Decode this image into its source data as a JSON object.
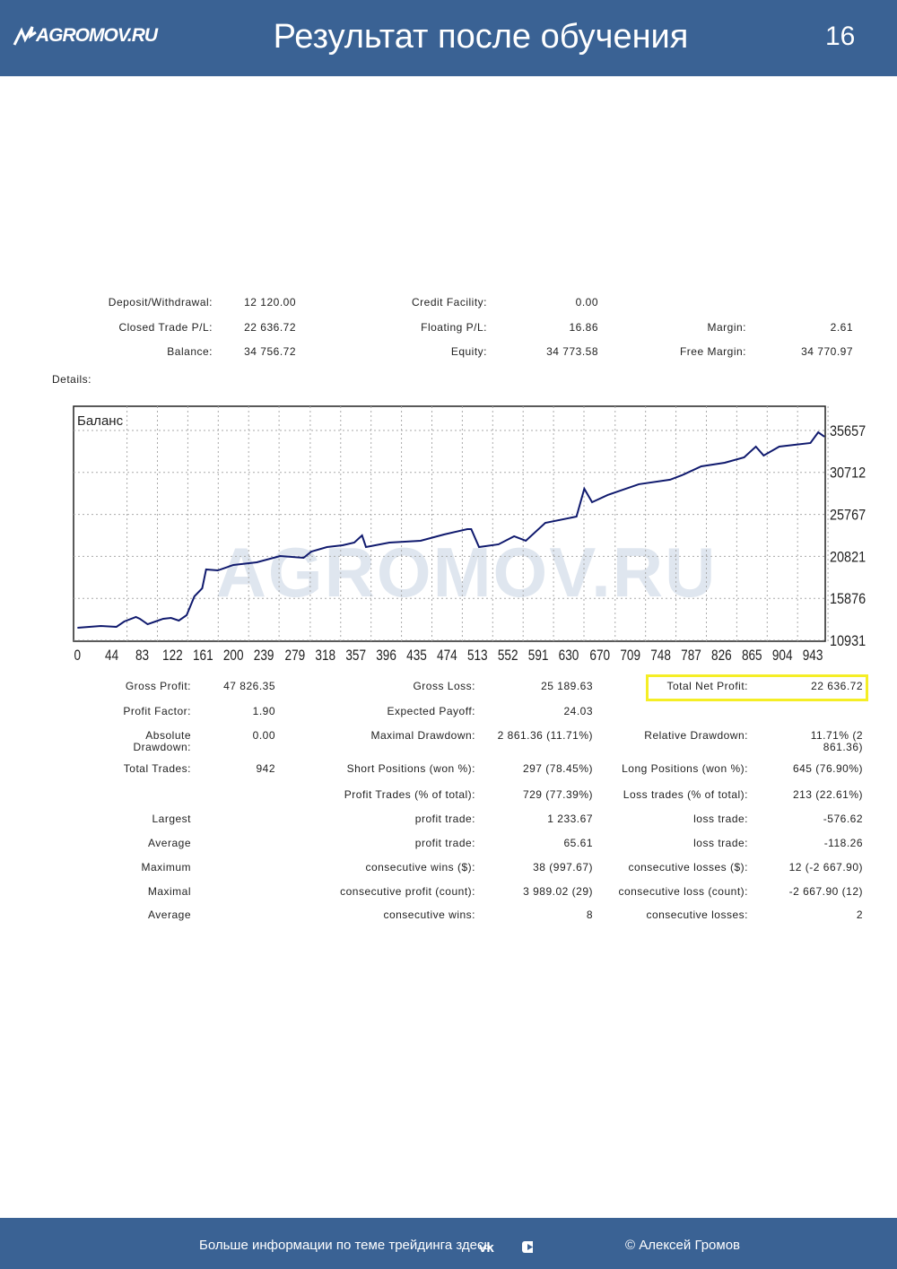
{
  "header": {
    "logo": "AGROMOV.RU",
    "title": "Результат после обучения",
    "page": "16"
  },
  "summary": [
    [
      "Deposit/Withdrawal:",
      "12 120.00",
      "Credit Facility:",
      "0.00",
      null,
      null
    ],
    [
      "Closed Trade P/L:",
      "22 636.72",
      "Floating P/L:",
      "16.86",
      "Margin:",
      "2.61"
    ],
    [
      "Balance:",
      "34 756.72",
      "Equity:",
      "34 773.58",
      "Free Margin:",
      "34 770.97"
    ]
  ],
  "details_label": "Details:",
  "watermark": "AGROMOV.RU",
  "chart_data": {
    "type": "line",
    "title": "Баланс",
    "color": "#101a6e",
    "grid": true,
    "x": [
      0,
      30,
      50,
      60,
      75,
      80,
      90,
      100,
      110,
      120,
      130,
      140,
      150,
      160,
      165,
      180,
      200,
      230,
      260,
      290,
      300,
      320,
      340,
      355,
      365,
      370,
      400,
      440,
      470,
      500,
      505,
      515,
      540,
      560,
      575,
      600,
      640,
      650,
      660,
      680,
      720,
      760,
      775,
      800,
      830,
      855,
      870,
      880,
      900,
      940,
      950,
      958
    ],
    "series": [
      {
        "name": "Баланс",
        "color": "#101a6e",
        "values": [
          12410,
          12620,
          12520,
          13150,
          13680,
          13470,
          12830,
          13150,
          13470,
          13570,
          13260,
          13890,
          16110,
          17060,
          19280,
          19170,
          19810,
          20120,
          20860,
          20650,
          21390,
          21920,
          22130,
          22450,
          23290,
          21920,
          22450,
          22660,
          23400,
          24030,
          24030,
          21920,
          22240,
          23190,
          22660,
          24770,
          25510,
          28790,
          27200,
          28050,
          29320,
          29850,
          30370,
          31430,
          31850,
          32490,
          33750,
          32700,
          33750,
          34180,
          35440,
          34920
        ]
      }
    ],
    "xlim": [
      -5,
      959
    ],
    "ylim": [
      10826,
      38504
    ],
    "xticks": [
      0,
      44,
      83,
      122,
      161,
      200,
      239,
      279,
      318,
      357,
      396,
      435,
      474,
      513,
      552,
      591,
      630,
      670,
      709,
      748,
      787,
      826,
      865,
      904,
      943
    ],
    "yticks": [
      10931,
      15876,
      20821,
      25767,
      30712,
      35657
    ]
  },
  "stats": [
    [
      "Gross Profit:",
      "47 826.35",
      "Gross Loss:",
      "25 189.63",
      "Total Net Profit:",
      "22 636.72"
    ],
    [
      "Profit Factor:",
      "1.90",
      "Expected Payoff:",
      "24.03",
      null,
      null
    ],
    [
      "Absolute Drawdown:",
      "0.00",
      "Maximal Drawdown:",
      "2 861.36 (11.71%)",
      "Relative Drawdown:",
      "11.71% (2 861.36)"
    ],
    [
      "Total Trades:",
      "942",
      "Short Positions (won %):",
      "297 (78.45%)",
      "Long Positions (won %):",
      "645 (76.90%)"
    ],
    [
      null,
      null,
      "Profit Trades (% of total):",
      "729 (77.39%)",
      "Loss trades (% of total):",
      "213 (22.61%)"
    ],
    [
      "Largest",
      null,
      "profit trade:",
      "1 233.67",
      "loss trade:",
      "-576.62"
    ],
    [
      "Average",
      null,
      "profit trade:",
      "65.61",
      "loss trade:",
      "-118.26"
    ],
    [
      "Maximum",
      null,
      "consecutive wins ($):",
      "38 (997.67)",
      "consecutive losses ($):",
      "12 (-2 667.90)"
    ],
    [
      "Maximal",
      null,
      "consecutive profit (count):",
      "3 989.02 (29)",
      "consecutive loss (count):",
      "-2 667.90 (12)"
    ],
    [
      "Average",
      null,
      "consecutive wins:",
      "8",
      "consecutive losses:",
      "2"
    ]
  ],
  "footer": {
    "info": "Больше информации по теме трейдинга здесь",
    "copyright": "© Алексей Громов"
  }
}
